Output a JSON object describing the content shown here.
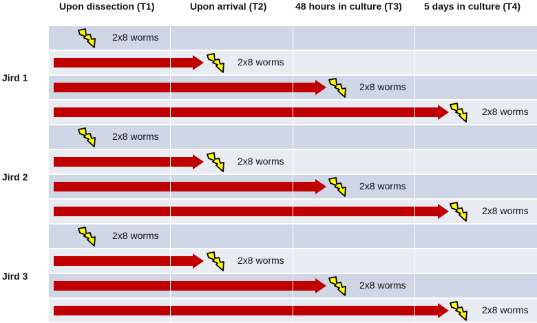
{
  "headers": [
    "Upon dissection (T1)",
    "Upon arrival (T2)",
    "48 hours in culture (T3)",
    "5 days in culture (T4)"
  ],
  "groups": [
    {
      "label": "Jird 1",
      "rows": [
        {
          "timepoint": "T1",
          "text": "2x8 worms"
        },
        {
          "timepoint": "T2",
          "text": "2x8 worms"
        },
        {
          "timepoint": "T3",
          "text": "2x8 worms"
        },
        {
          "timepoint": "T4",
          "text": "2x8 worms"
        }
      ]
    },
    {
      "label": "Jird 2",
      "rows": [
        {
          "timepoint": "T1",
          "text": "2x8 worms"
        },
        {
          "timepoint": "T2",
          "text": "2x8 worms"
        },
        {
          "timepoint": "T3",
          "text": "2x8 worms"
        },
        {
          "timepoint": "T4",
          "text": "2x8 worms"
        }
      ]
    },
    {
      "label": "Jird 3",
      "rows": [
        {
          "timepoint": "T1",
          "text": "2x8 worms"
        },
        {
          "timepoint": "T2",
          "text": "2x8 worms"
        },
        {
          "timepoint": "T3",
          "text": "2x8 worms"
        },
        {
          "timepoint": "T4",
          "text": "2x8 worms"
        }
      ]
    }
  ],
  "colors": {
    "arrow": "#c00000",
    "bolt_fill": "#ffff00",
    "bolt_stroke": "#000000",
    "row_dark": "#cfd6e5",
    "row_light": "#e8ebf2"
  },
  "icons": {
    "arrow": "arrow-right-icon",
    "bolt": "lightning-bolt-icon"
  }
}
